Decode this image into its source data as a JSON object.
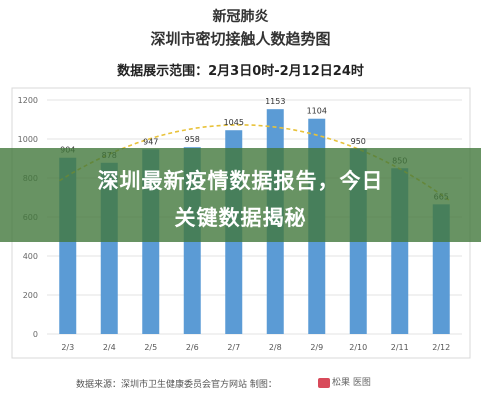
{
  "header": {
    "line1": "新冠肺炎",
    "line2": "深圳市密切接触人数趋势图",
    "range": "数据展示范围：2月3日0时-2月12日24时"
  },
  "banner": {
    "line1": "深圳最新疫情数据报告，今日",
    "line2": "关键数据揭秘"
  },
  "footer": {
    "source": "数据来源：深圳市卫生健康委员会官方网站    制图：",
    "logo_text": "松果 医图"
  },
  "colors": {
    "bar": "#5b9bd5",
    "trend": "#e8c23a",
    "banner": "#42783c"
  },
  "chart_data": {
    "type": "bar",
    "categories": [
      "2/3",
      "2/4",
      "2/5",
      "2/6",
      "2/7",
      "2/8",
      "2/9",
      "2/10",
      "2/11",
      "2/12"
    ],
    "values": [
      904,
      878,
      947,
      958,
      1045,
      1153,
      1104,
      950,
      850,
      665
    ],
    "ylim": [
      0,
      1200
    ],
    "yticks": [
      0,
      200,
      400,
      600,
      800,
      1000,
      1200
    ],
    "grid": true,
    "trendline": "polynomial (dashed)"
  }
}
